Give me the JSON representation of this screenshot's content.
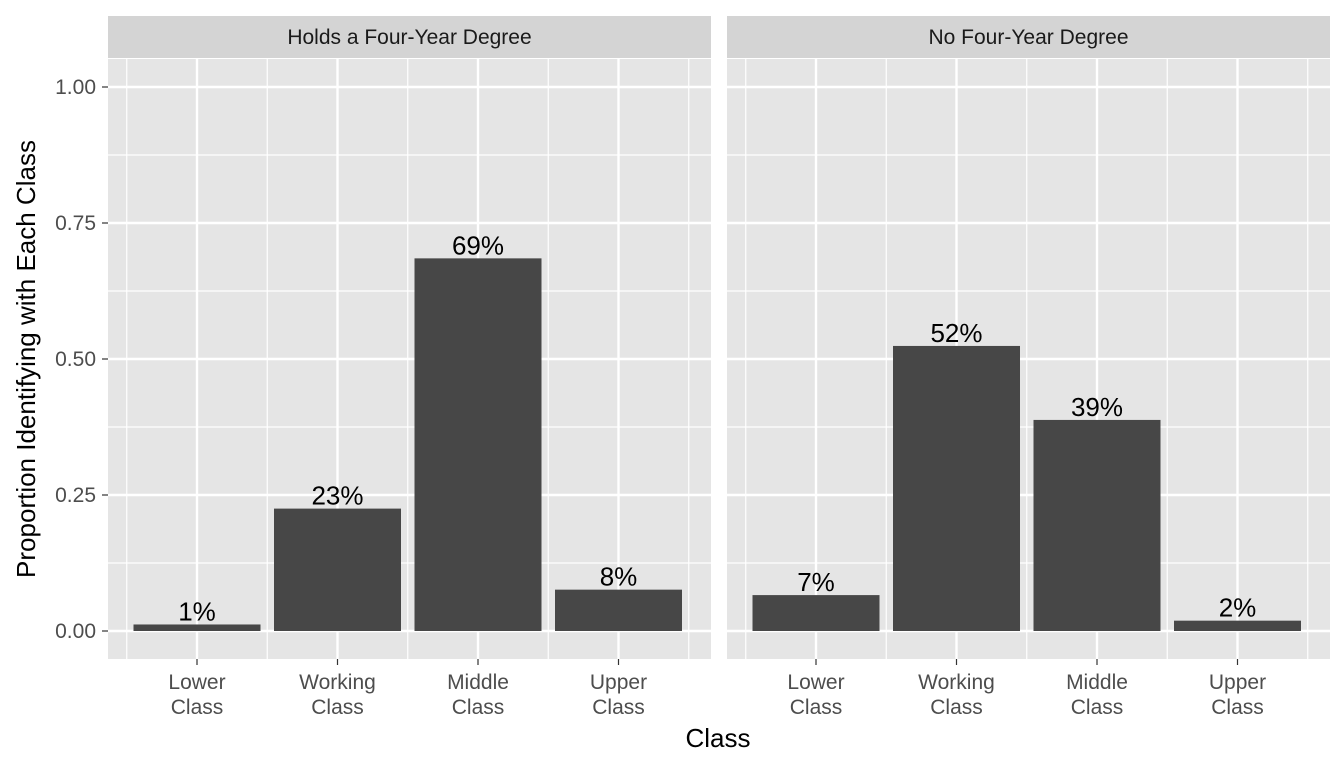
{
  "chart_data": {
    "type": "bar",
    "faceted": true,
    "xlabel": "Class",
    "ylabel": "Proportion Identifying with Each Class",
    "ylim": [
      0,
      1.05
    ],
    "yticks": [
      "0.00",
      "0.25",
      "0.50",
      "0.75",
      "1.00"
    ],
    "ytick_values": [
      0,
      0.25,
      0.5,
      0.75,
      1.0
    ],
    "categories": [
      "Lower Class",
      "Working Class",
      "Middle Class",
      "Upper Class"
    ],
    "category_lines": [
      [
        "Lower",
        "Class"
      ],
      [
        "Working",
        "Class"
      ],
      [
        "Middle",
        "Class"
      ],
      [
        "Upper",
        "Class"
      ]
    ],
    "grid": true,
    "legend": "none",
    "colors": {
      "bar": "#474747",
      "panel_bg": "#e5e5e5",
      "strip_bg": "#d4d4d4",
      "grid": "#ffffff"
    },
    "panels": [
      {
        "title": "Holds a Four-Year Degree",
        "values": [
          0.012,
          0.225,
          0.685,
          0.076
        ],
        "labels": [
          "1%",
          "23%",
          "69%",
          "8%"
        ]
      },
      {
        "title": "No Four-Year Degree",
        "values": [
          0.066,
          0.524,
          0.388,
          0.019
        ],
        "labels": [
          "7%",
          "52%",
          "39%",
          "2%"
        ]
      }
    ]
  }
}
